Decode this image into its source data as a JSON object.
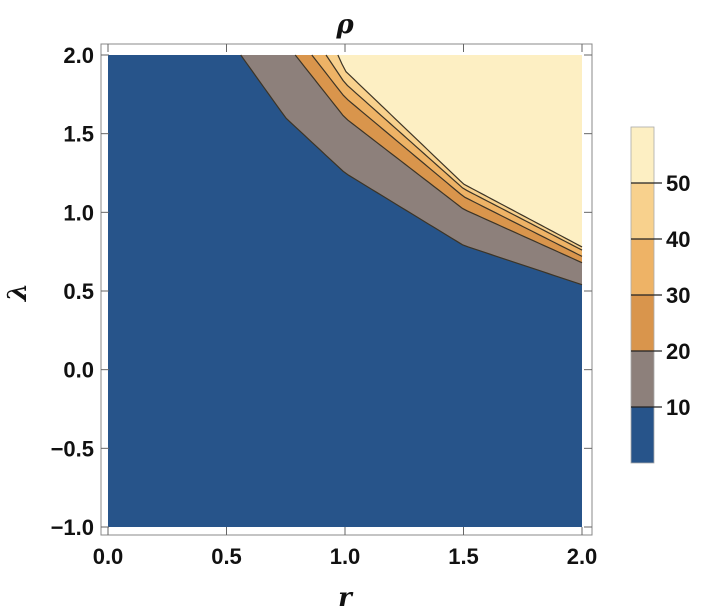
{
  "chart_data": {
    "type": "contour",
    "title": "ρ",
    "xlabel": "r",
    "ylabel": "λ",
    "xlim": [
      0,
      2
    ],
    "ylim": [
      -1,
      2
    ],
    "x_ticks": [
      "0.0",
      "0.5",
      "1.0",
      "1.5",
      "2.0"
    ],
    "y_ticks": [
      "2.0",
      "1.5",
      "1.0",
      "0.5",
      "0.0",
      "−0.5",
      "−1.0"
    ],
    "x_tick_values": [
      0,
      0.5,
      1,
      1.5,
      2
    ],
    "y_tick_values": [
      2,
      1.5,
      1,
      0.5,
      0,
      -0.5,
      -1
    ],
    "grid": false,
    "legend": "right",
    "colorbar": {
      "labels": [
        "50",
        "40",
        "30",
        "20",
        "10"
      ],
      "values": [
        50,
        40,
        30,
        20,
        10
      ],
      "range": [
        0,
        60
      ]
    },
    "levels": [
      {
        "name": "0–10",
        "color": "#27548a"
      },
      {
        "name": "10–20",
        "color": "#8d807b"
      },
      {
        "name": "20–30",
        "color": "#d9954c"
      },
      {
        "name": "30–40",
        "color": "#eeb366"
      },
      {
        "name": "40–50",
        "color": "#f8d18d"
      },
      {
        "name": "50–60",
        "color": "#fdefc3"
      }
    ],
    "contours": [
      {
        "level": 10,
        "points": [
          [
            0.56,
            2.0
          ],
          [
            0.75,
            1.6
          ],
          [
            1.0,
            1.25
          ],
          [
            1.5,
            0.79
          ],
          [
            2.0,
            0.54
          ]
        ]
      },
      {
        "level": 20,
        "points": [
          [
            0.79,
            2.0
          ],
          [
            1.0,
            1.6
          ],
          [
            1.5,
            1.02
          ],
          [
            2.0,
            0.68
          ]
        ]
      },
      {
        "level": 30,
        "points": [
          [
            0.86,
            2.0
          ],
          [
            1.0,
            1.73
          ],
          [
            1.5,
            1.1
          ],
          [
            2.0,
            0.72
          ]
        ]
      },
      {
        "level": 40,
        "points": [
          [
            0.92,
            2.0
          ],
          [
            1.0,
            1.82
          ],
          [
            1.5,
            1.15
          ],
          [
            2.0,
            0.76
          ]
        ]
      },
      {
        "level": 50,
        "points": [
          [
            0.97,
            2.0
          ],
          [
            1.0,
            1.9
          ],
          [
            1.5,
            1.18
          ],
          [
            2.0,
            0.78
          ]
        ]
      }
    ]
  }
}
